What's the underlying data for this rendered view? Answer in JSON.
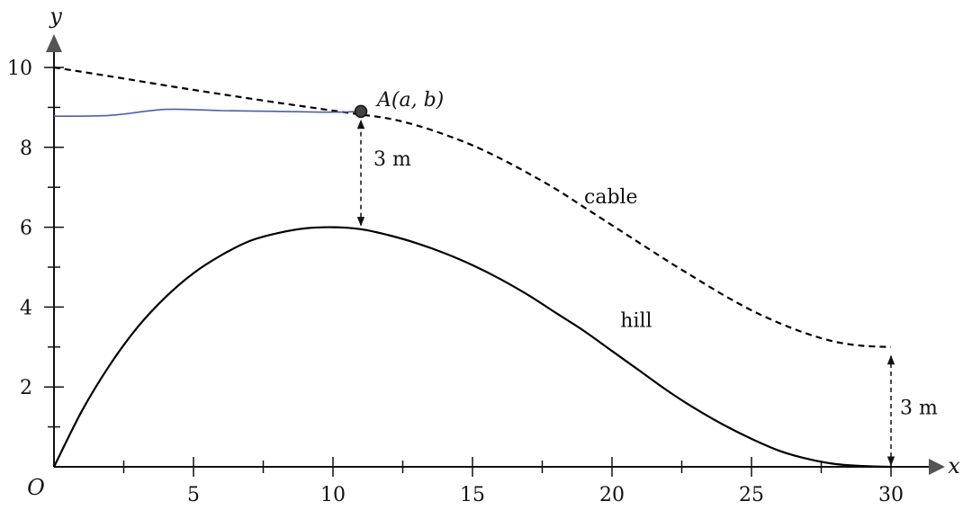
{
  "chart_data": {
    "type": "line",
    "xlabel": "y",
    "xaxis_label": "x",
    "ylabel": "y",
    "origin_label": "O",
    "xlim": [
      0,
      30
    ],
    "ylim": [
      0,
      10
    ],
    "x_ticks": [
      0,
      5,
      10,
      15,
      20,
      25,
      30
    ],
    "x_tick_labels": [
      "5",
      "10",
      "15",
      "20",
      "25",
      "30"
    ],
    "y_ticks": [
      2,
      4,
      6,
      8,
      10
    ],
    "y_tick_labels": [
      "2",
      "4",
      "6",
      "8",
      "10"
    ],
    "grid": false,
    "series": [
      {
        "name": "hill",
        "style": "solid",
        "color": "#000000",
        "x": [
          0,
          1,
          2,
          3,
          4,
          5,
          6,
          7,
          8,
          9,
          10,
          11,
          12,
          13,
          14,
          15,
          16,
          17,
          18,
          19,
          20,
          21,
          22,
          23,
          24,
          25,
          26,
          27,
          28,
          29,
          30
        ],
        "y": [
          0,
          1.4,
          2.55,
          3.5,
          4.25,
          4.85,
          5.3,
          5.65,
          5.85,
          5.97,
          6.0,
          5.95,
          5.8,
          5.6,
          5.35,
          5.05,
          4.7,
          4.3,
          3.85,
          3.4,
          2.9,
          2.4,
          1.9,
          1.45,
          1.05,
          0.7,
          0.4,
          0.2,
          0.07,
          0.02,
          0
        ]
      },
      {
        "name": "cable",
        "style": "dashed",
        "color": "#000000",
        "x": [
          0,
          2,
          4,
          6,
          8,
          10,
          11,
          12,
          13,
          14,
          15,
          16,
          17,
          18,
          19,
          20,
          21,
          22,
          23,
          24,
          25,
          26,
          27,
          28,
          29,
          30
        ],
        "y": [
          10,
          9.78,
          9.55,
          9.33,
          9.12,
          8.92,
          8.82,
          8.72,
          8.55,
          8.32,
          8.05,
          7.72,
          7.35,
          6.95,
          6.5,
          6.05,
          5.6,
          5.15,
          4.72,
          4.3,
          3.92,
          3.6,
          3.33,
          3.13,
          3.03,
          3.0
        ]
      },
      {
        "name": "pen-line",
        "style": "solid",
        "color": "#4a5fa8",
        "x": [
          0,
          2,
          4,
          6,
          8,
          10,
          11
        ],
        "y": [
          8.78,
          8.8,
          8.95,
          8.92,
          8.9,
          8.88,
          8.9
        ]
      }
    ],
    "point": {
      "label": "A(a, b)",
      "x": 11,
      "y": 8.9
    },
    "arrows": [
      {
        "label": "3 m",
        "x": 11,
        "y_from": 6,
        "y_to": 8.9
      },
      {
        "label": "3 m",
        "x": 30,
        "y_from": 0,
        "y_to": 3
      }
    ],
    "annotations": [
      {
        "text": "cable",
        "x": 19,
        "y": 6.6
      },
      {
        "text": "hill",
        "x": 20.3,
        "y": 3.5
      }
    ]
  }
}
